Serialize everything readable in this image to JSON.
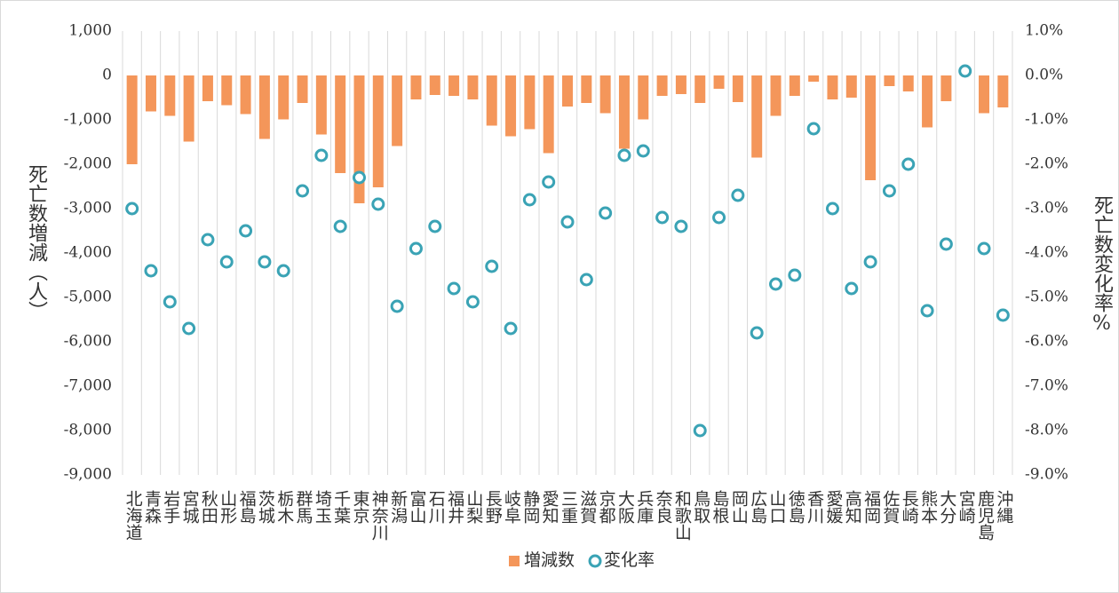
{
  "chart_data": {
    "type": "bar",
    "categories": [
      "北海道",
      "青森",
      "岩手",
      "宮城",
      "秋田",
      "山形",
      "福島",
      "茨城",
      "栃木",
      "群馬",
      "埼玉",
      "千葉",
      "東京",
      "神奈川",
      "新潟",
      "富山",
      "石川",
      "福井",
      "山梨",
      "長野",
      "岐阜",
      "静岡",
      "愛知",
      "三重",
      "滋賀",
      "京都",
      "大阪",
      "兵庫",
      "奈良",
      "和歌山",
      "鳥取",
      "島根",
      "岡山",
      "広島",
      "山口",
      "徳島",
      "香川",
      "愛媛",
      "高知",
      "福岡",
      "佐賀",
      "長崎",
      "熊本",
      "大分",
      "宮崎",
      "鹿児島",
      "沖縄"
    ],
    "series": [
      {
        "name": "増減数",
        "type": "bar",
        "color": "#f4965a",
        "values": [
          -2000,
          -810,
          -910,
          -1490,
          -580,
          -670,
          -870,
          -1430,
          -990,
          -620,
          -1330,
          -2200,
          -2880,
          -2520,
          -1590,
          -540,
          -440,
          -460,
          -540,
          -1130,
          -1370,
          -1210,
          -1750,
          -700,
          -620,
          -850,
          -1650,
          -990,
          -460,
          -420,
          -620,
          -300,
          -600,
          -1850,
          -910,
          -460,
          -140,
          -540,
          -500,
          -2360,
          -240,
          -360,
          -1170,
          -580,
          30,
          -850,
          -720
        ]
      },
      {
        "name": "変化率",
        "type": "scatter",
        "axis": "y2",
        "color": "#3aa3b5",
        "values": [
          -3.0,
          -4.4,
          -5.1,
          -5.7,
          -3.7,
          -4.2,
          -3.5,
          -4.2,
          -4.4,
          -2.6,
          -1.8,
          -3.4,
          -2.3,
          -2.9,
          -5.2,
          -3.9,
          -3.4,
          -4.8,
          -5.1,
          -4.3,
          -5.7,
          -2.8,
          -2.4,
          -3.3,
          -4.6,
          -3.1,
          -1.8,
          -1.7,
          -3.2,
          -3.4,
          -8.0,
          -3.2,
          -2.7,
          -5.8,
          -4.7,
          -4.5,
          -1.2,
          -3.0,
          -4.8,
          -4.2,
          -2.6,
          -2.0,
          -5.3,
          -3.8,
          0.1,
          -3.9,
          -5.4
        ]
      }
    ],
    "y_label": "死亡数増減（人）",
    "y2_label": "死亡数変化率%",
    "ylim": [
      -9000,
      1000
    ],
    "yticks": [
      {
        "value": 1000,
        "label": "1,000"
      },
      0,
      {
        "value": -1000,
        "label": "-1,000"
      },
      {
        "value": -2000,
        "label": "-2,000"
      },
      {
        "value": -3000,
        "label": "-3,000"
      },
      {
        "value": -4000,
        "label": "-4,000"
      },
      {
        "value": -5000,
        "label": "-5,000"
      },
      {
        "value": -6000,
        "label": "-6,000"
      },
      {
        "value": -7000,
        "label": "-7,000"
      },
      {
        "value": -8000,
        "label": "-8,000"
      },
      {
        "value": -9000,
        "label": "-9,000"
      }
    ],
    "y2lim": [
      -9,
      1
    ],
    "y2ticks": [
      {
        "value": 1,
        "label": "1.0%"
      },
      {
        "value": 0,
        "label": "0.0%"
      },
      {
        "value": -1,
        "label": "-1.0%"
      },
      {
        "value": -2,
        "label": "-2.0%"
      },
      {
        "value": -3,
        "label": "-3.0%"
      },
      {
        "value": -4,
        "label": "-4.0%"
      },
      {
        "value": -5,
        "label": "-5.0%"
      },
      {
        "value": -6,
        "label": "-6.0%"
      },
      {
        "value": -7,
        "label": "-7.0%"
      },
      {
        "value": -8,
        "label": "-8.0%"
      },
      {
        "value": -9,
        "label": "-9.0%"
      }
    ],
    "negative_tick_color": "#e8262a",
    "grid": false,
    "legend": "bottom"
  }
}
